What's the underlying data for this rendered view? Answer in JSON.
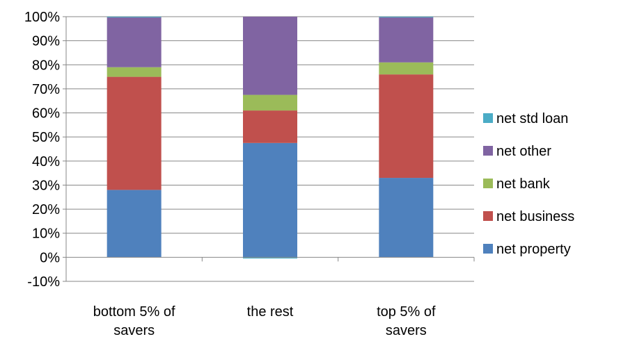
{
  "chart_data": {
    "type": "bar",
    "stacked": true,
    "categories": [
      [
        "bottom 5% of",
        "savers"
      ],
      [
        "the rest"
      ],
      [
        "top 5% of",
        "savers"
      ]
    ],
    "series": [
      {
        "name": "net property",
        "color": "#4F81BD",
        "values": [
          28,
          47.5,
          33
        ]
      },
      {
        "name": "net business",
        "color": "#C0504D",
        "values": [
          47,
          13.5,
          43
        ]
      },
      {
        "name": "net bank",
        "color": "#9BBB59",
        "values": [
          4,
          6.5,
          5
        ]
      },
      {
        "name": "net other",
        "color": "#8064A2",
        "values": [
          20.7,
          32.5,
          18.7
        ]
      },
      {
        "name": "net std loan",
        "color": "#4BACC6",
        "values": [
          0.3,
          -0.5,
          0.3
        ]
      }
    ],
    "ylim": [
      -10,
      100
    ],
    "yticks": [
      -10,
      0,
      10,
      20,
      30,
      40,
      50,
      60,
      70,
      80,
      90,
      100
    ],
    "ytick_format": "percent",
    "grid": true,
    "legend_position": "right",
    "title": "",
    "xlabel": "",
    "ylabel": ""
  }
}
